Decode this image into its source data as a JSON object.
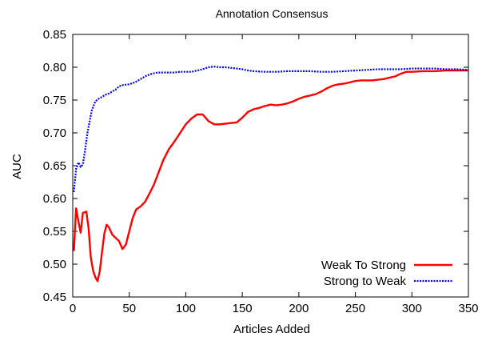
{
  "chart_data": {
    "type": "line",
    "title": "Annotation Consensus",
    "xlabel": "Articles Added",
    "ylabel": "AUC",
    "xlim": [
      0,
      350
    ],
    "ylim": [
      0.45,
      0.85
    ],
    "x_ticks": [
      "0",
      "50",
      "100",
      "150",
      "200",
      "250",
      "300",
      "350"
    ],
    "y_ticks": [
      "0.45",
      "0.50",
      "0.55",
      "0.60",
      "0.65",
      "0.70",
      "0.75",
      "0.80",
      "0.85"
    ],
    "legend_position": "bottom-right",
    "grid": false,
    "series": [
      {
        "name": "Weak To Strong",
        "color": "#ff0000",
        "style": "solid",
        "points": [
          [
            1,
            0.52
          ],
          [
            3,
            0.585
          ],
          [
            5,
            0.565
          ],
          [
            7,
            0.548
          ],
          [
            9,
            0.578
          ],
          [
            12,
            0.58
          ],
          [
            14,
            0.555
          ],
          [
            16,
            0.51
          ],
          [
            18,
            0.49
          ],
          [
            20,
            0.48
          ],
          [
            22,
            0.474
          ],
          [
            24,
            0.49
          ],
          [
            26,
            0.52
          ],
          [
            28,
            0.547
          ],
          [
            30,
            0.56
          ],
          [
            32,
            0.556
          ],
          [
            35,
            0.545
          ],
          [
            38,
            0.54
          ],
          [
            41,
            0.535
          ],
          [
            44,
            0.523
          ],
          [
            47,
            0.53
          ],
          [
            50,
            0.55
          ],
          [
            53,
            0.57
          ],
          [
            56,
            0.583
          ],
          [
            60,
            0.588
          ],
          [
            64,
            0.595
          ],
          [
            68,
            0.608
          ],
          [
            72,
            0.622
          ],
          [
            76,
            0.64
          ],
          [
            80,
            0.658
          ],
          [
            85,
            0.675
          ],
          [
            90,
            0.687
          ],
          [
            95,
            0.7
          ],
          [
            100,
            0.713
          ],
          [
            105,
            0.722
          ],
          [
            110,
            0.728
          ],
          [
            115,
            0.728
          ],
          [
            120,
            0.718
          ],
          [
            125,
            0.713
          ],
          [
            130,
            0.713
          ],
          [
            135,
            0.714
          ],
          [
            140,
            0.715
          ],
          [
            145,
            0.716
          ],
          [
            150,
            0.723
          ],
          [
            155,
            0.732
          ],
          [
            160,
            0.736
          ],
          [
            165,
            0.738
          ],
          [
            170,
            0.741
          ],
          [
            175,
            0.743
          ],
          [
            180,
            0.742
          ],
          [
            185,
            0.743
          ],
          [
            190,
            0.745
          ],
          [
            195,
            0.748
          ],
          [
            200,
            0.752
          ],
          [
            205,
            0.755
          ],
          [
            210,
            0.757
          ],
          [
            215,
            0.759
          ],
          [
            220,
            0.763
          ],
          [
            225,
            0.768
          ],
          [
            230,
            0.772
          ],
          [
            235,
            0.774
          ],
          [
            240,
            0.775
          ],
          [
            245,
            0.777
          ],
          [
            250,
            0.779
          ],
          [
            255,
            0.78
          ],
          [
            260,
            0.78
          ],
          [
            265,
            0.78
          ],
          [
            270,
            0.781
          ],
          [
            275,
            0.782
          ],
          [
            280,
            0.784
          ],
          [
            285,
            0.786
          ],
          [
            290,
            0.79
          ],
          [
            295,
            0.793
          ],
          [
            300,
            0.793
          ],
          [
            310,
            0.794
          ],
          [
            320,
            0.794
          ],
          [
            330,
            0.795
          ],
          [
            340,
            0.795
          ],
          [
            350,
            0.795
          ]
        ]
      },
      {
        "name": "Strong to Weak",
        "color": "#0000ff",
        "style": "dotted",
        "points": [
          [
            1,
            0.61
          ],
          [
            3,
            0.645
          ],
          [
            5,
            0.655
          ],
          [
            7,
            0.648
          ],
          [
            9,
            0.652
          ],
          [
            11,
            0.675
          ],
          [
            13,
            0.7
          ],
          [
            15,
            0.718
          ],
          [
            17,
            0.735
          ],
          [
            20,
            0.748
          ],
          [
            23,
            0.752
          ],
          [
            26,
            0.755
          ],
          [
            29,
            0.758
          ],
          [
            32,
            0.76
          ],
          [
            35,
            0.763
          ],
          [
            38,
            0.766
          ],
          [
            41,
            0.771
          ],
          [
            45,
            0.773
          ],
          [
            50,
            0.774
          ],
          [
            55,
            0.777
          ],
          [
            60,
            0.782
          ],
          [
            65,
            0.787
          ],
          [
            70,
            0.79
          ],
          [
            75,
            0.792
          ],
          [
            80,
            0.792
          ],
          [
            85,
            0.792
          ],
          [
            90,
            0.792
          ],
          [
            95,
            0.793
          ],
          [
            100,
            0.793
          ],
          [
            105,
            0.793
          ],
          [
            110,
            0.795
          ],
          [
            115,
            0.797
          ],
          [
            120,
            0.8
          ],
          [
            125,
            0.801
          ],
          [
            130,
            0.8
          ],
          [
            135,
            0.8
          ],
          [
            140,
            0.799
          ],
          [
            145,
            0.798
          ],
          [
            150,
            0.797
          ],
          [
            155,
            0.795
          ],
          [
            160,
            0.794
          ],
          [
            170,
            0.793
          ],
          [
            180,
            0.793
          ],
          [
            190,
            0.794
          ],
          [
            200,
            0.794
          ],
          [
            210,
            0.794
          ],
          [
            220,
            0.793
          ],
          [
            230,
            0.793
          ],
          [
            240,
            0.794
          ],
          [
            250,
            0.795
          ],
          [
            260,
            0.796
          ],
          [
            270,
            0.797
          ],
          [
            280,
            0.797
          ],
          [
            290,
            0.797
          ],
          [
            300,
            0.798
          ],
          [
            310,
            0.798
          ],
          [
            320,
            0.798
          ],
          [
            330,
            0.797
          ],
          [
            340,
            0.797
          ],
          [
            350,
            0.796
          ]
        ]
      }
    ]
  }
}
